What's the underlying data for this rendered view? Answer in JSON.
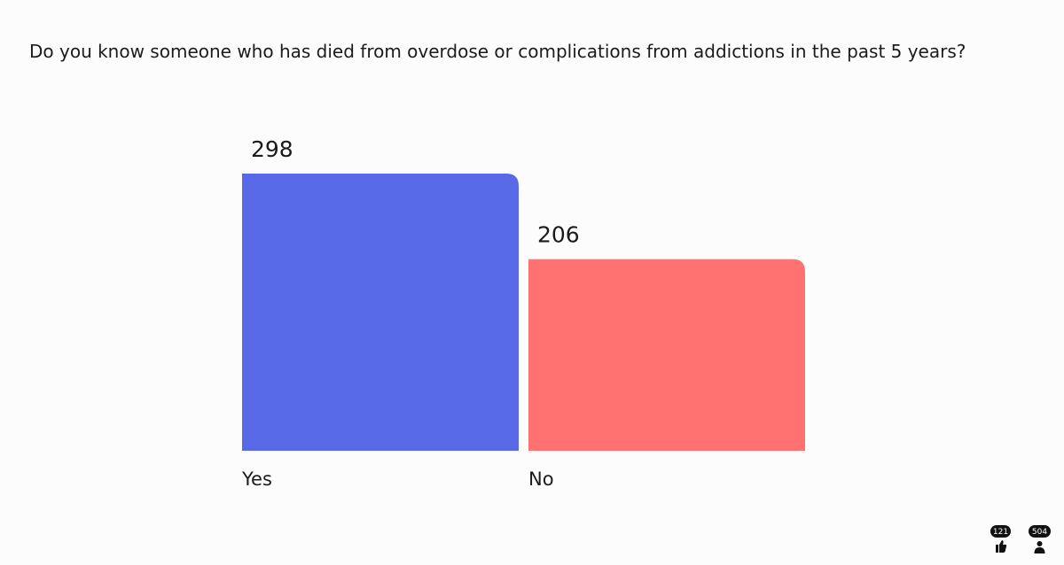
{
  "chart_data": {
    "type": "bar",
    "title": "Do you know someone who has died from overdose or complications from addictions in the past 5 years?",
    "categories": [
      "Yes",
      "No"
    ],
    "series": [
      {
        "name": "Yes",
        "color": "#5769e7",
        "values": [
          298,
          null
        ]
      },
      {
        "name": "No",
        "color": "#ff7271",
        "values": [
          null,
          206
        ]
      }
    ]
  },
  "footer": {
    "reactions": 121,
    "participants": 504
  }
}
